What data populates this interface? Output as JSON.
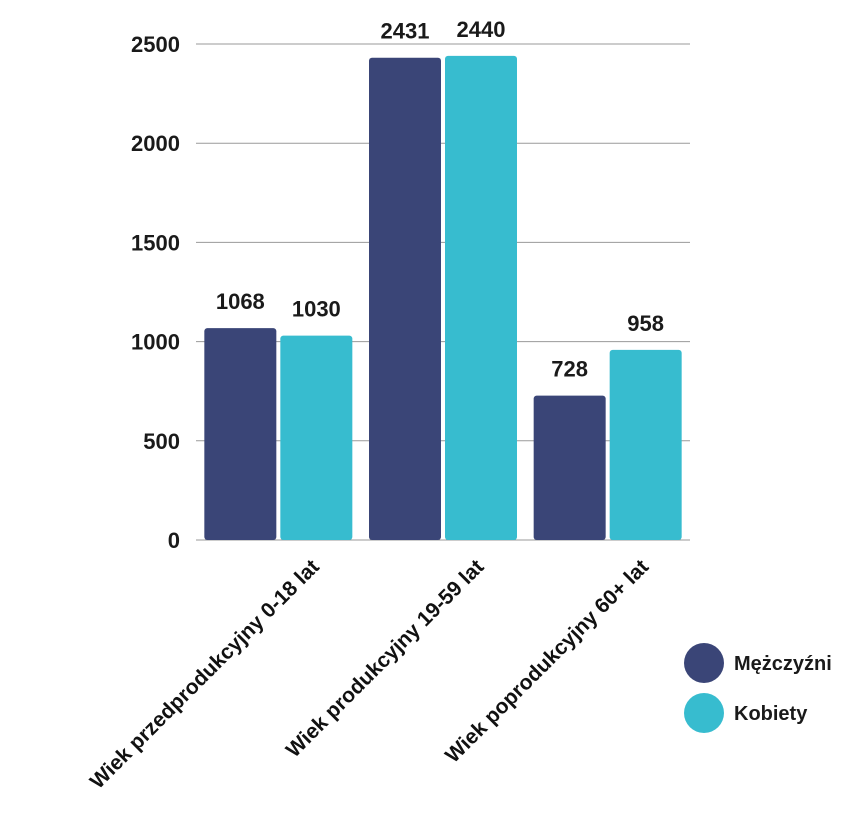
{
  "chart_data": {
    "type": "bar",
    "categories": [
      "Wiek przedprodukcyjny 0-18 lat",
      "Wiek produkcyjny 19-59 lat",
      "Wiek poprodukcyjny 60+ lat"
    ],
    "series": [
      {
        "name": "Mężczyźni",
        "color": "#3a4577",
        "values": [
          1068,
          2431,
          728
        ]
      },
      {
        "name": "Kobiety",
        "color": "#37bccf",
        "values": [
          1030,
          2440,
          958
        ]
      }
    ],
    "ylim": [
      0,
      2500
    ],
    "yticks": [
      "0",
      "500",
      "1000",
      "1500",
      "2000",
      "2500"
    ],
    "grid": true,
    "legend": "bottom-right",
    "title": "",
    "xlabel": "",
    "ylabel": ""
  }
}
